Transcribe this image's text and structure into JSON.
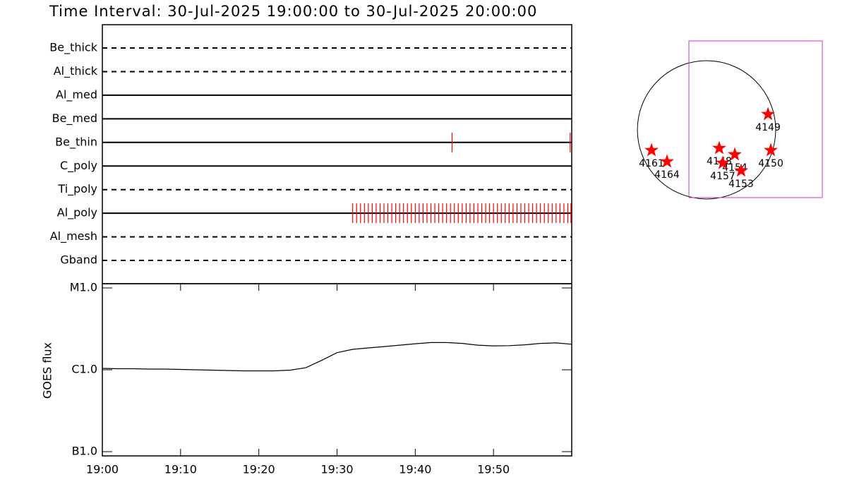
{
  "chart_data": [
    {
      "type": "timeline",
      "title": "Time Interval: 30-Jul-2025 19:00:00 to 30-Jul-2025 20:00:00",
      "categories": [
        "Be_thick",
        "Al_thick",
        "Al_med",
        "Be_med",
        "Be_thin",
        "C_poly",
        "Ti_poly",
        "Al_poly",
        "Al_mesh",
        "Gband"
      ],
      "line_styles": [
        "dashed",
        "dashed",
        "solid",
        "solid",
        "solid",
        "solid",
        "dashed",
        "solid",
        "dashed",
        "dashed"
      ],
      "observation_color": "#ff0000",
      "observations": [
        [],
        [],
        [],
        [],
        [
          44.7,
          59.8
        ],
        [],
        [],
        [
          32,
          32.5,
          33,
          33.5,
          34,
          34.5,
          35,
          35.5,
          36,
          36.5,
          37,
          37.5,
          38,
          38.5,
          39,
          39.5,
          40,
          40.5,
          41,
          41.5,
          42,
          42.5,
          43,
          43.5,
          44,
          44.5,
          45,
          45.5,
          46,
          46.5,
          47,
          47.5,
          48,
          48.5,
          49,
          49.5,
          50,
          50.5,
          51,
          51.5,
          52,
          52.5,
          53,
          53.5,
          54,
          54.5,
          55,
          55.5,
          56,
          56.5,
          57,
          57.5,
          58,
          58.5,
          59,
          59.5,
          59.9
        ],
        [],
        []
      ],
      "xlim": [
        0,
        60
      ]
    },
    {
      "type": "line",
      "y_label": "GOES flux",
      "log_y": true,
      "color": "#000000",
      "x": [
        0,
        2,
        4,
        6,
        8,
        10,
        12,
        14,
        16,
        18,
        20,
        22,
        24,
        26,
        28,
        30,
        32,
        34,
        36,
        38,
        40,
        42,
        44,
        46,
        48,
        50,
        52,
        54,
        56,
        58,
        60
      ],
      "values": [
        1.04e-06,
        1.03e-06,
        1.03e-06,
        1.02e-06,
        1.02e-06,
        1.01e-06,
        1e-06,
        9.9e-07,
        9.8e-07,
        9.7e-07,
        9.7e-07,
        9.7e-07,
        9.9e-07,
        1.06e-06,
        1.3e-06,
        1.62e-06,
        1.78e-06,
        1.85e-06,
        1.92e-06,
        2e-06,
        2.08e-06,
        2.15e-06,
        2.15e-06,
        2.1e-06,
        2e-06,
        1.96e-06,
        1.97e-06,
        2.02e-06,
        2.1e-06,
        2.13e-06,
        2.05e-06
      ],
      "xlim": [
        0,
        60
      ],
      "xticks": [
        {
          "value": 0,
          "label": "19:00"
        },
        {
          "value": 10,
          "label": "19:10"
        },
        {
          "value": 20,
          "label": "19:20"
        },
        {
          "value": 30,
          "label": "19:30"
        },
        {
          "value": 40,
          "label": "19:40"
        },
        {
          "value": 50,
          "label": "19:50"
        }
      ],
      "ylim": [
        1e-07,
        1e-05
      ],
      "yticks": [
        {
          "value": 1e-05,
          "label": "M1.0"
        },
        {
          "value": 1e-06,
          "label": "C1.0"
        },
        {
          "value": 1e-07,
          "label": "B1.0"
        }
      ]
    },
    {
      "type": "map",
      "disk_radius": 960,
      "disk_color": "#000000",
      "fov": {
        "x": [
          -245,
          1607
        ],
        "y": [
          -941,
          1235
        ]
      },
      "fov_color": "#cc33cc",
      "color": "#ff0000",
      "xlim": [
        -990,
        1852
      ],
      "ylim": [
        -1039,
        1313
      ],
      "labels": [
        "4149",
        "4150",
        "4161",
        "4164",
        "4148",
        "4154",
        "4157",
        "4153"
      ],
      "x": [
        853,
        892,
        -764,
        -549,
        176,
        392,
        225,
        480
      ],
      "values": [
        216,
        -284,
        -284,
        -441,
        -255,
        -343,
        -461,
        -568
      ]
    }
  ]
}
